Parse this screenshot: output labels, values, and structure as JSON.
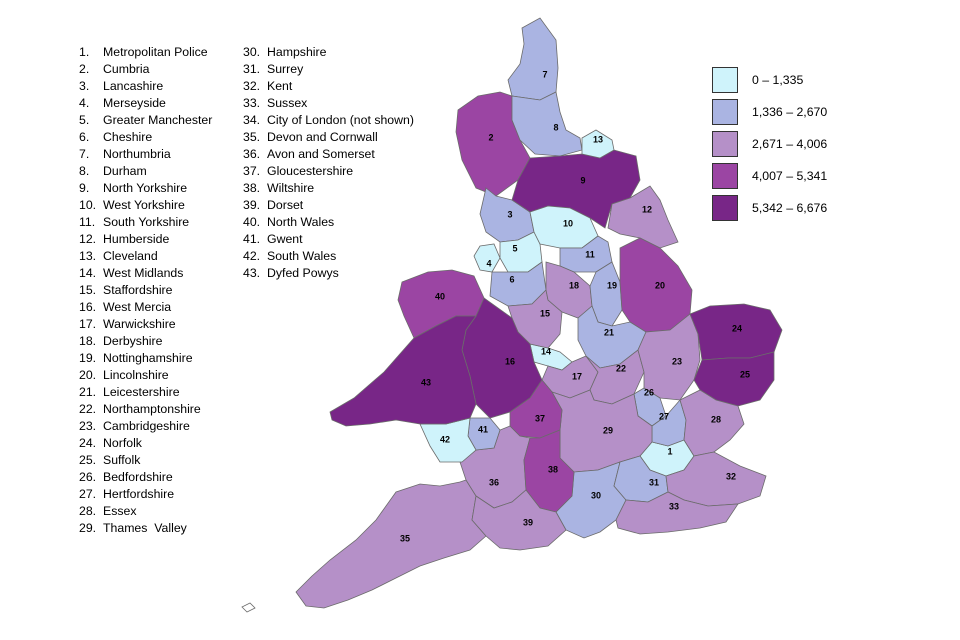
{
  "forces_column_1": [
    {
      "num": "1.",
      "name": "Metropolitan Police"
    },
    {
      "num": "2.",
      "name": "Cumbria"
    },
    {
      "num": "3.",
      "name": "Lancashire"
    },
    {
      "num": "4.",
      "name": "Merseyside"
    },
    {
      "num": "5.",
      "name": "Greater Manchester"
    },
    {
      "num": "6.",
      "name": "Cheshire"
    },
    {
      "num": "7.",
      "name": "Northumbria"
    },
    {
      "num": "8.",
      "name": "Durham"
    },
    {
      "num": "9.",
      "name": "North Yorkshire"
    },
    {
      "num": "10.",
      "name": "West Yorkshire"
    },
    {
      "num": "11.",
      "name": "South Yorkshire"
    },
    {
      "num": "12.",
      "name": "Humberside"
    },
    {
      "num": "13.",
      "name": "Cleveland"
    },
    {
      "num": "14.",
      "name": "West Midlands"
    },
    {
      "num": "15.",
      "name": "Staffordshire"
    },
    {
      "num": "16.",
      "name": "West Mercia"
    },
    {
      "num": "17.",
      "name": "Warwickshire"
    },
    {
      "num": "18.",
      "name": "Derbyshire"
    },
    {
      "num": "19.",
      "name": "Nottinghamshire"
    },
    {
      "num": "20.",
      "name": "Lincolnshire"
    },
    {
      "num": "21.",
      "name": "Leicestershire"
    },
    {
      "num": "22.",
      "name": "Northamptonshire"
    },
    {
      "num": "23.",
      "name": "Cambridgeshire"
    },
    {
      "num": "24.",
      "name": "Norfolk"
    },
    {
      "num": "25.",
      "name": "Suffolk"
    },
    {
      "num": "26.",
      "name": "Bedfordshire"
    },
    {
      "num": "27.",
      "name": "Hertfordshire"
    },
    {
      "num": "28.",
      "name": "Essex"
    },
    {
      "num": "29.",
      "name": "Thames  Valley"
    }
  ],
  "forces_column_2": [
    {
      "num": "30.",
      "name": "Hampshire"
    },
    {
      "num": "31.",
      "name": "Surrey"
    },
    {
      "num": "32.",
      "name": "Kent"
    },
    {
      "num": "33.",
      "name": "Sussex"
    },
    {
      "num": "34.",
      "name": "City of London (not shown)"
    },
    {
      "num": "35.",
      "name": "Devon and Cornwall"
    },
    {
      "num": "36.",
      "name": "Avon and Somerset"
    },
    {
      "num": "37.",
      "name": "Gloucestershire"
    },
    {
      "num": "38.",
      "name": "Wiltshire"
    },
    {
      "num": "39.",
      "name": "Dorset"
    },
    {
      "num": "40.",
      "name": "North Wales"
    },
    {
      "num": "41.",
      "name": "Gwent"
    },
    {
      "num": "42.",
      "name": "South Wales"
    },
    {
      "num": "43.",
      "name": "Dyfed Powys"
    }
  ],
  "legend": [
    {
      "label": "0 – 1,335",
      "color": "#cff3fb"
    },
    {
      "label": "1,336 – 2,670",
      "color": "#aab4e2"
    },
    {
      "label": "2,671 – 4,006",
      "color": "#b590c8"
    },
    {
      "label": "4,007 – 5,341",
      "color": "#9b45a3"
    },
    {
      "label": "5,342 – 6,676",
      "color": "#782687"
    }
  ],
  "regions": [
    {
      "id": "1",
      "band": 0
    },
    {
      "id": "2",
      "band": 3
    },
    {
      "id": "3",
      "band": 1
    },
    {
      "id": "4",
      "band": 0
    },
    {
      "id": "5",
      "band": 0
    },
    {
      "id": "6",
      "band": 1
    },
    {
      "id": "7",
      "band": 1
    },
    {
      "id": "8",
      "band": 1
    },
    {
      "id": "9",
      "band": 4
    },
    {
      "id": "10",
      "band": 0
    },
    {
      "id": "11",
      "band": 1
    },
    {
      "id": "12",
      "band": 2
    },
    {
      "id": "13",
      "band": 0
    },
    {
      "id": "14",
      "band": 0
    },
    {
      "id": "15",
      "band": 2
    },
    {
      "id": "16",
      "band": 4
    },
    {
      "id": "17",
      "band": 2
    },
    {
      "id": "18",
      "band": 2
    },
    {
      "id": "19",
      "band": 1
    },
    {
      "id": "20",
      "band": 3
    },
    {
      "id": "21",
      "band": 1
    },
    {
      "id": "22",
      "band": 2
    },
    {
      "id": "23",
      "band": 2
    },
    {
      "id": "24",
      "band": 4
    },
    {
      "id": "25",
      "band": 4
    },
    {
      "id": "26",
      "band": 1
    },
    {
      "id": "27",
      "band": 1
    },
    {
      "id": "28",
      "band": 2
    },
    {
      "id": "29",
      "band": 2
    },
    {
      "id": "30",
      "band": 1
    },
    {
      "id": "31",
      "band": 1
    },
    {
      "id": "32",
      "band": 2
    },
    {
      "id": "33",
      "band": 2
    },
    {
      "id": "35",
      "band": 2
    },
    {
      "id": "36",
      "band": 2
    },
    {
      "id": "37",
      "band": 3
    },
    {
      "id": "38",
      "band": 3
    },
    {
      "id": "39",
      "band": 2
    },
    {
      "id": "40",
      "band": 3
    },
    {
      "id": "41",
      "band": 1
    },
    {
      "id": "42",
      "band": 0
    },
    {
      "id": "43",
      "band": 4
    }
  ]
}
